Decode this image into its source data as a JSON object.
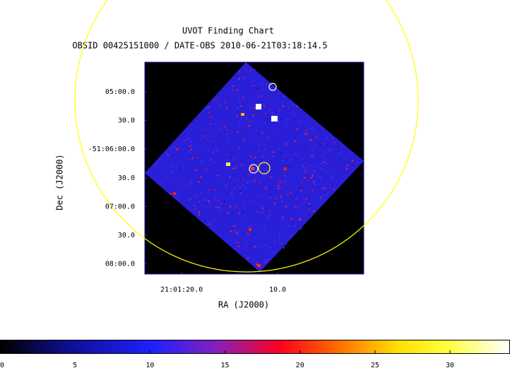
{
  "chart_data": {
    "type": "image",
    "title": "UVOT Finding Chart",
    "subtitle": "OBSID 00425151000 / DATE-OBS 2010-06-21T03:18:14.5",
    "x_label": "RA (J2000)",
    "y_label": "Dec (J2000)",
    "xlim": [
      315.3493,
      315.2543
    ],
    "xticks": [
      {
        "value": 315.33333,
        "label": "21:01:20.0"
      },
      {
        "value": 315.29167,
        "label": "10.0"
      }
    ],
    "ylim": [
      -51.1363,
      -51.0747
    ],
    "yticks": [
      {
        "value": -51.08333,
        "label": "05:00.0"
      },
      {
        "value": -51.09167,
        "label": "30.0"
      },
      {
        "value": -51.1,
        "label": "-51:06:00.0"
      },
      {
        "value": -51.10833,
        "label": "30.0"
      },
      {
        "value": -51.11667,
        "label": "07:00.0"
      },
      {
        "value": -51.125,
        "label": "30.0"
      },
      {
        "value": -51.13333,
        "label": "08:00.0"
      }
    ],
    "colorbar": {
      "lim": [
        0,
        34
      ],
      "ticks": [
        0,
        5,
        10,
        15,
        20,
        25,
        30
      ]
    }
  }
}
